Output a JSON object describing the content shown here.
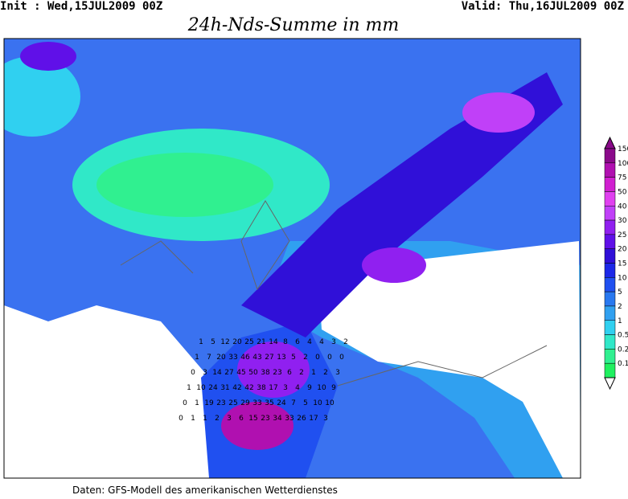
{
  "header": {
    "init": "Init : Wed,15JUL2009 00Z",
    "valid": "Valid: Thu,16JUL2009 00Z",
    "title": "24h-Nds-Summe in mm"
  },
  "colorbar": {
    "levels": [
      150,
      100,
      75,
      50,
      40,
      30,
      25,
      20,
      15,
      10,
      5,
      2,
      1,
      0.5,
      0.2,
      0.1
    ],
    "colors": [
      "#8a0a8a",
      "#b010b0",
      "#d020d0",
      "#e040f0",
      "#c040f8",
      "#9020f0",
      "#6010e8",
      "#3010d8",
      "#1c28e8",
      "#2050f0",
      "#2878f0",
      "#30a0f0",
      "#30d0f0",
      "#30e8c8",
      "#30f090",
      "#20f060"
    ]
  },
  "map": {
    "rows": [
      [
        1,
        5,
        12,
        20,
        25,
        21,
        14,
        8,
        6,
        4,
        4,
        3,
        2
      ],
      [
        1,
        7,
        20,
        33,
        46,
        43,
        27,
        13,
        5,
        2,
        0,
        0,
        0
      ],
      [
        0,
        3,
        14,
        27,
        45,
        50,
        38,
        23,
        6,
        2,
        1,
        2,
        3
      ],
      [
        1,
        10,
        24,
        31,
        42,
        42,
        38,
        17,
        3,
        4,
        9,
        10,
        9
      ],
      [
        0,
        1,
        19,
        23,
        25,
        29,
        33,
        35,
        24,
        7,
        5,
        10,
        10
      ],
      [
        0,
        1,
        1,
        2,
        3,
        6,
        15,
        23,
        34,
        33,
        26,
        17,
        3
      ]
    ]
  },
  "footer": "Daten: GFS-Modell des amerikanischen Wetterdienstes"
}
